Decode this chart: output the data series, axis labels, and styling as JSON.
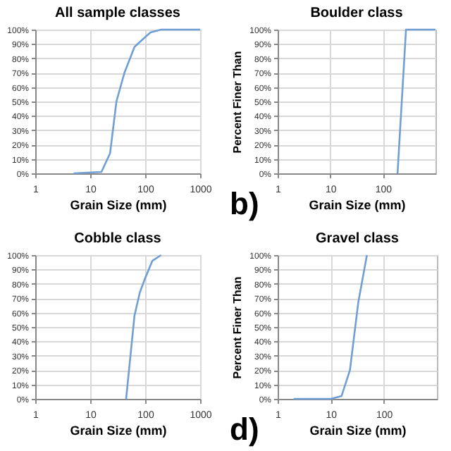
{
  "chart_data": [
    {
      "type": "line",
      "title": "All sample classes",
      "xlabel": "Grain Size (mm)",
      "log": "x",
      "grid": true,
      "x": [
        5,
        16,
        23,
        30,
        42,
        64,
        95,
        125,
        195,
        1000
      ],
      "series": [
        {
          "color": "#6f9fd3",
          "values": [
            0,
            1,
            14,
            50,
            70,
            88,
            94,
            98,
            100,
            100
          ]
        }
      ],
      "xlim": [
        1,
        1000
      ],
      "xticks": [
        1,
        10,
        100,
        1000
      ],
      "ylim": [
        0,
        100
      ],
      "yticks": [
        {
          "value": 0,
          "label": "0%"
        },
        {
          "value": 10,
          "label": "10%"
        },
        {
          "value": 20,
          "label": "20%"
        },
        {
          "value": 30,
          "label": "30%"
        },
        {
          "value": 40,
          "label": "40%"
        },
        {
          "value": 50,
          "label": "50%"
        },
        {
          "value": 60,
          "label": "60%"
        },
        {
          "value": 70,
          "label": "70%"
        },
        {
          "value": 80,
          "label": "80%"
        },
        {
          "value": 90,
          "label": "90%"
        },
        {
          "value": 100,
          "label": "100%"
        }
      ]
    },
    {
      "type": "line",
      "title": "Boulder class",
      "xlabel": "Grain Size (mm)",
      "ylabel": "Percent Finer Than",
      "annotations": [
        "b)"
      ],
      "log": "x",
      "grid": true,
      "x": [
        190,
        275,
        1000
      ],
      "series": [
        {
          "color": "#6f9fd3",
          "values": [
            0,
            100,
            100
          ]
        }
      ],
      "xlim": [
        1,
        1000
      ],
      "xticks": [
        1,
        10,
        100
      ],
      "ylim": [
        0,
        100
      ],
      "yticks": [
        {
          "value": 0,
          "label": "0%"
        },
        {
          "value": 10,
          "label": "10%"
        },
        {
          "value": 20,
          "label": "20%"
        },
        {
          "value": 30,
          "label": "30%"
        },
        {
          "value": 40,
          "label": "40%"
        },
        {
          "value": 50,
          "label": "50%"
        },
        {
          "value": 60,
          "label": "60%"
        },
        {
          "value": 70,
          "label": "70%"
        },
        {
          "value": 80,
          "label": "80%"
        },
        {
          "value": 90,
          "label": "90%"
        },
        {
          "value": 100,
          "label": "100%"
        }
      ]
    },
    {
      "type": "line",
      "title": "Cobble class",
      "xlabel": "Grain Size (mm)",
      "log": "x",
      "grid": true,
      "x": [
        45,
        54,
        64,
        80,
        100,
        135,
        195
      ],
      "series": [
        {
          "color": "#6f9fd3",
          "values": [
            0,
            30,
            58,
            74,
            84,
            96,
            100
          ]
        }
      ],
      "xlim": [
        1,
        1000
      ],
      "xticks": [
        1,
        10,
        100,
        1000
      ],
      "ylim": [
        0,
        100
      ],
      "yticks": [
        {
          "value": 0,
          "label": "0%"
        },
        {
          "value": 10,
          "label": "10%"
        },
        {
          "value": 20,
          "label": "20%"
        },
        {
          "value": 30,
          "label": "30%"
        },
        {
          "value": 40,
          "label": "40%"
        },
        {
          "value": 50,
          "label": "50%"
        },
        {
          "value": 60,
          "label": "60%"
        },
        {
          "value": 70,
          "label": "70%"
        },
        {
          "value": 80,
          "label": "80%"
        },
        {
          "value": 90,
          "label": "90%"
        },
        {
          "value": 100,
          "label": "100%"
        }
      ]
    },
    {
      "type": "line",
      "title": "Gravel class",
      "xlabel": "Grain Size (mm)",
      "ylabel": "Percent Finer Than",
      "annotations": [
        "d)"
      ],
      "log": "x",
      "grid": true,
      "x": [
        2,
        10,
        16,
        23,
        33,
        48
      ],
      "series": [
        {
          "color": "#6f9fd3",
          "values": [
            0,
            0,
            2,
            20,
            67,
            100
          ]
        }
      ],
      "xlim": [
        1,
        1000
      ],
      "xticks": [
        1,
        10,
        100
      ],
      "ylim": [
        0,
        100
      ],
      "yticks": [
        {
          "value": 0,
          "label": "0%"
        },
        {
          "value": 10,
          "label": "10%"
        },
        {
          "value": 20,
          "label": "20%"
        },
        {
          "value": 30,
          "label": "30%"
        },
        {
          "value": 40,
          "label": "40%"
        },
        {
          "value": 50,
          "label": "50%"
        },
        {
          "value": 60,
          "label": "60%"
        },
        {
          "value": 70,
          "label": "70%"
        },
        {
          "value": 80,
          "label": "80%"
        },
        {
          "value": 90,
          "label": "90%"
        },
        {
          "value": 100,
          "label": "100%"
        }
      ]
    }
  ]
}
